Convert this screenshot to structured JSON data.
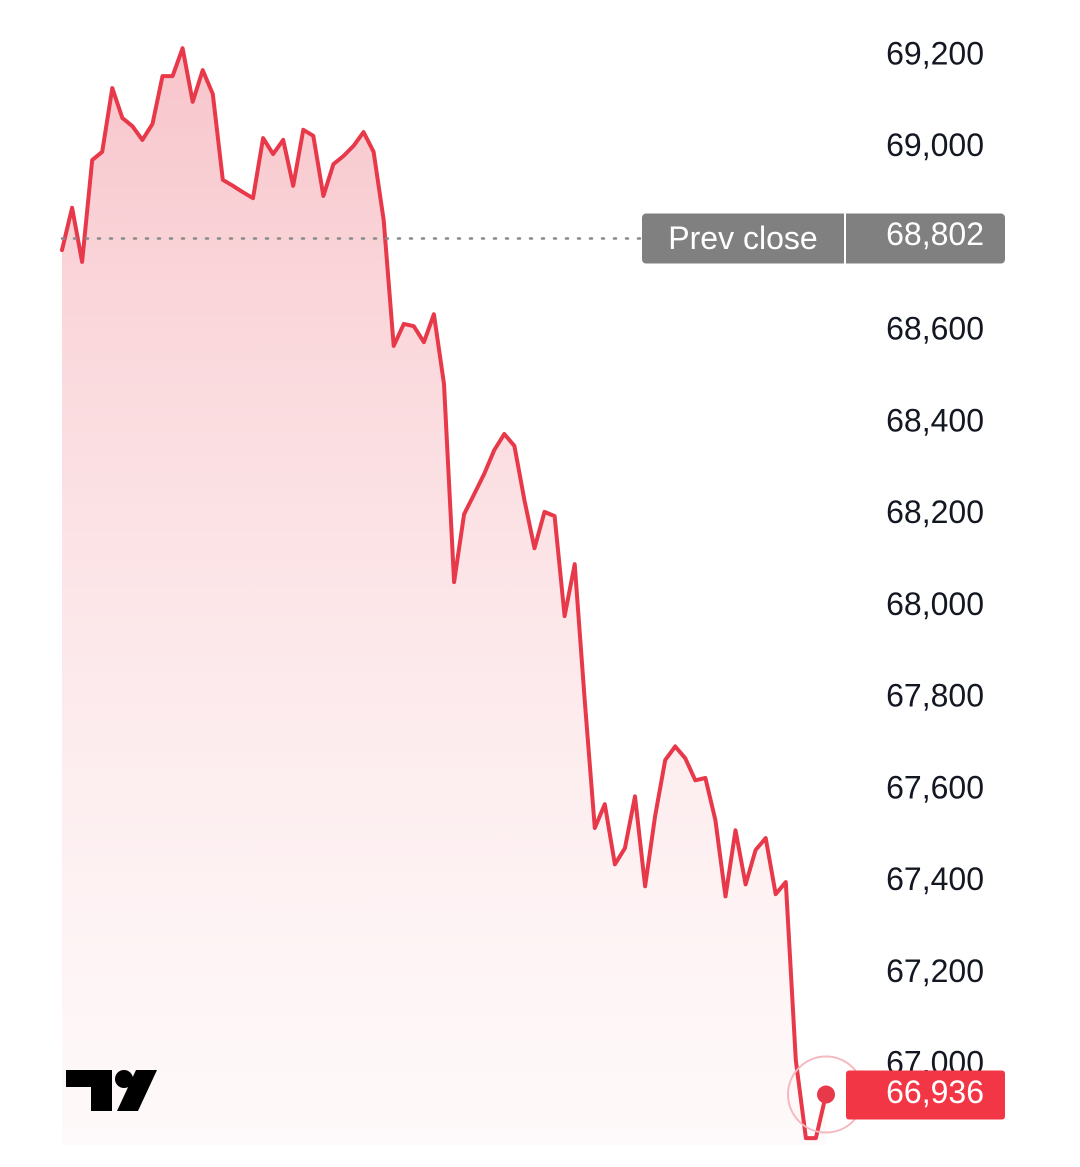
{
  "chart_data": {
    "type": "area",
    "color": "#e8394a",
    "values": [
      68777,
      68869,
      68751,
      68973,
      68991,
      69130,
      69065,
      69047,
      69017,
      69052,
      69156,
      69156,
      69217,
      69100,
      69169,
      69117,
      68930,
      68917,
      68903,
      68890,
      69021,
      68986,
      69017,
      68917,
      69039,
      69026,
      68895,
      68964,
      68982,
      69004,
      69034,
      68991,
      68842,
      68568,
      68616,
      68611,
      68576,
      68637,
      68485,
      68053,
      68201,
      68245,
      68289,
      68341,
      68376,
      68350,
      68232,
      68127,
      68206,
      68197,
      67979,
      68092,
      67796,
      67517,
      67569,
      67438,
      67473,
      67586,
      67390,
      67543,
      67665,
      67695,
      67669,
      67621,
      67626,
      67534,
      67368,
      67512,
      67394,
      67469,
      67495,
      67373,
      67399,
      67011,
      66841,
      66841,
      66936
    ],
    "last_value_label": "66,936",
    "ylim": [
      66826,
      69322
    ],
    "yticks": [
      {
        "value": 67000,
        "label": "67,000"
      },
      {
        "value": 67200,
        "label": "67,200"
      },
      {
        "value": 67400,
        "label": "67,400"
      },
      {
        "value": 67600,
        "label": "67,600"
      },
      {
        "value": 67800,
        "label": "67,800"
      },
      {
        "value": 68000,
        "label": "68,000"
      },
      {
        "value": 68200,
        "label": "68,200"
      },
      {
        "value": 68400,
        "label": "68,400"
      },
      {
        "value": 68600,
        "label": "68,600"
      },
      {
        "value": 69000,
        "label": "69,000"
      },
      {
        "value": 69200,
        "label": "69,200"
      }
    ],
    "prev_close": {
      "label": "Prev close",
      "value": 68802,
      "value_label": "68,802"
    }
  }
}
